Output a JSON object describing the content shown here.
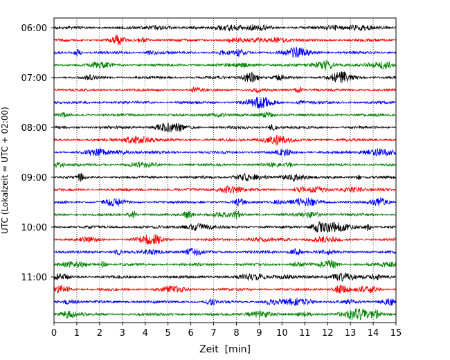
{
  "chart_data": {
    "type": "line",
    "subtype": "seismogram-helicorder",
    "title": "",
    "xlabel": "Zeit  [min]",
    "ylabel": "UTC (Lokalzeit = UTC + 02:00)",
    "xlim": [
      0,
      15
    ],
    "x_ticks": [
      "0",
      "1",
      "2",
      "3",
      "4",
      "5",
      "6",
      "7",
      "8",
      "9",
      "10",
      "11",
      "12",
      "13",
      "14",
      "15"
    ],
    "y_ticks": [
      "06:00",
      "07:00",
      "08:00",
      "09:00",
      "10:00",
      "11:00"
    ],
    "grid": "vertical dotted lines at each minute",
    "legend": "none",
    "trace_colors": [
      "#000000",
      "#ff0000",
      "#0000ff",
      "#008000"
    ],
    "trace_interval_minutes": 15,
    "series": [
      {
        "start": "06:00",
        "color": "#000000"
      },
      {
        "start": "06:15",
        "color": "#ff0000"
      },
      {
        "start": "06:30",
        "color": "#0000ff"
      },
      {
        "start": "06:45",
        "color": "#008000"
      },
      {
        "start": "07:00",
        "color": "#000000"
      },
      {
        "start": "07:15",
        "color": "#ff0000"
      },
      {
        "start": "07:30",
        "color": "#0000ff"
      },
      {
        "start": "07:45",
        "color": "#008000"
      },
      {
        "start": "08:00",
        "color": "#000000"
      },
      {
        "start": "08:15",
        "color": "#ff0000"
      },
      {
        "start": "08:30",
        "color": "#0000ff"
      },
      {
        "start": "08:45",
        "color": "#008000"
      },
      {
        "start": "09:00",
        "color": "#000000"
      },
      {
        "start": "09:15",
        "color": "#ff0000"
      },
      {
        "start": "09:30",
        "color": "#0000ff"
      },
      {
        "start": "09:45",
        "color": "#008000"
      },
      {
        "start": "10:00",
        "color": "#000000"
      },
      {
        "start": "10:15",
        "color": "#ff0000"
      },
      {
        "start": "10:30",
        "color": "#0000ff"
      },
      {
        "start": "10:45",
        "color": "#008000"
      },
      {
        "start": "11:00",
        "color": "#000000"
      },
      {
        "start": "11:15",
        "color": "#ff0000"
      },
      {
        "start": "11:30",
        "color": "#0000ff"
      },
      {
        "start": "11:45",
        "color": "#008000"
      }
    ]
  }
}
